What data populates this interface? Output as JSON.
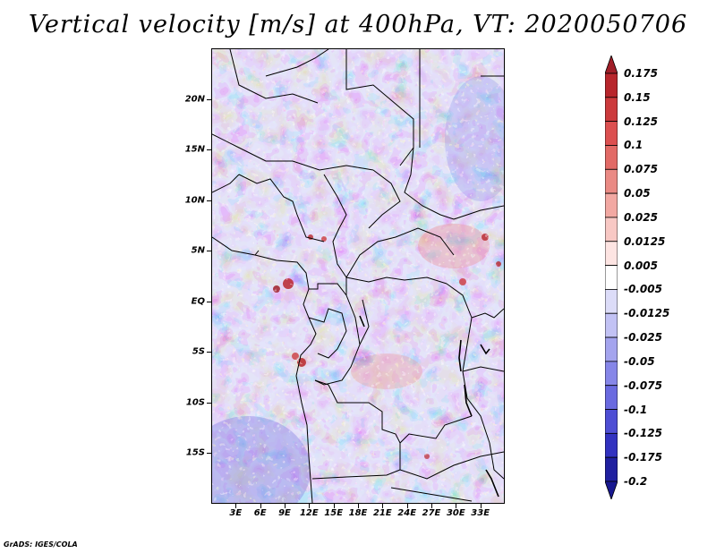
{
  "title": "Vertical velocity [m/s] at 400hPa, VT: 2020050706",
  "credit": "GrADS: IGES/COLA",
  "map": {
    "variable": "Vertical velocity",
    "units": "m/s",
    "level": "400hPa",
    "valid_time": "2020050706",
    "lon_range": [
      0,
      36
    ],
    "lat_range": [
      -20,
      25
    ],
    "lat_ticks": [
      {
        "value": 20,
        "label": "20N"
      },
      {
        "value": 15,
        "label": "15N"
      },
      {
        "value": 10,
        "label": "10N"
      },
      {
        "value": 5,
        "label": "5N"
      },
      {
        "value": 0,
        "label": "EQ"
      },
      {
        "value": -5,
        "label": "5S"
      },
      {
        "value": -10,
        "label": "10S"
      },
      {
        "value": -15,
        "label": "15S"
      }
    ],
    "lon_ticks": [
      {
        "value": 3,
        "label": "3E"
      },
      {
        "value": 6,
        "label": "6E"
      },
      {
        "value": 9,
        "label": "9E"
      },
      {
        "value": 12,
        "label": "12E"
      },
      {
        "value": 15,
        "label": "15E"
      },
      {
        "value": 18,
        "label": "18E"
      },
      {
        "value": 21,
        "label": "21E"
      },
      {
        "value": 24,
        "label": "24E"
      },
      {
        "value": 27,
        "label": "27E"
      },
      {
        "value": 30,
        "label": "30E"
      },
      {
        "value": 33,
        "label": "33E"
      }
    ]
  },
  "colorbar": {
    "labels": [
      "0.175",
      "0.15",
      "0.125",
      "0.1",
      "0.075",
      "0.05",
      "0.025",
      "0.0125",
      "0.005",
      "-0.005",
      "-0.0125",
      "-0.025",
      "-0.05",
      "-0.075",
      "-0.1",
      "-0.125",
      "-0.175",
      "-0.2"
    ],
    "colors": [
      "#a01e28",
      "#b8262c",
      "#cc3a3c",
      "#dc5050",
      "#e26a66",
      "#ea8a84",
      "#f2a8a2",
      "#f8c8c4",
      "#fde4e2",
      "#ffffff",
      "#dcdcf8",
      "#c2c2f4",
      "#a4a4ee",
      "#8686e8",
      "#6a6ae0",
      "#4e4ed4",
      "#3232c0",
      "#2020a0",
      "#181890"
    ]
  }
}
